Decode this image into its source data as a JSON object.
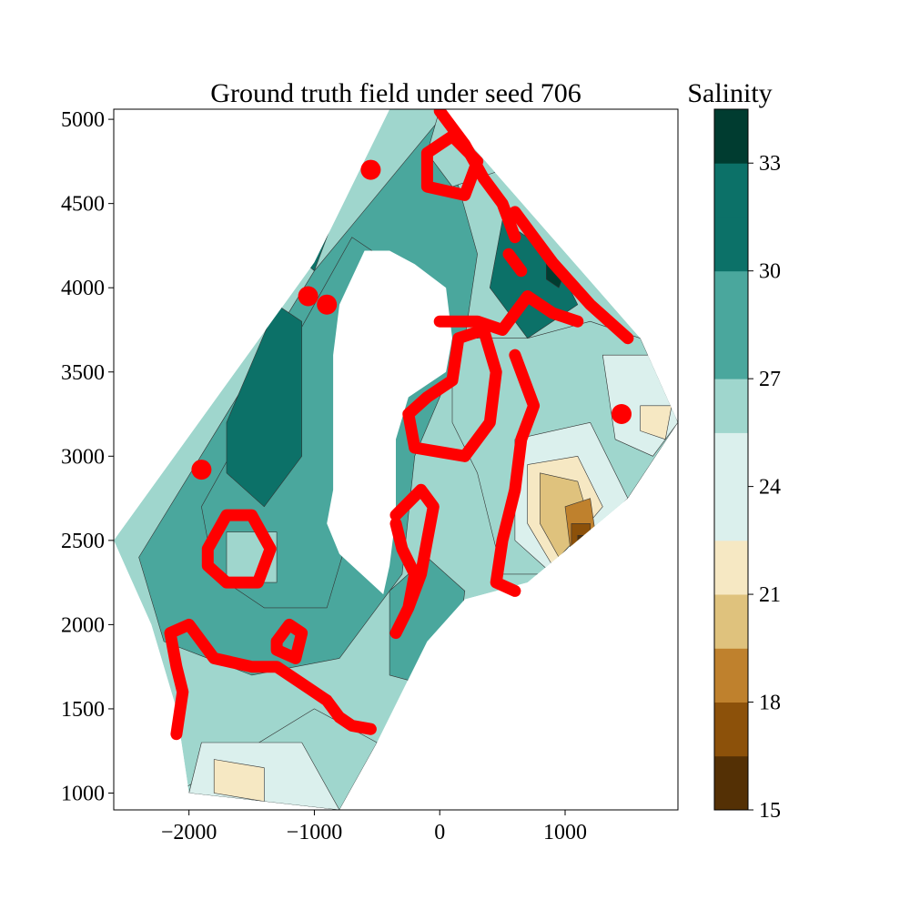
{
  "chart_data": {
    "type": "heatmap",
    "title": "Ground truth field under seed 706",
    "xlabel": "",
    "ylabel": "",
    "xlim": [
      -2600,
      1900
    ],
    "ylim": [
      900,
      5060
    ],
    "xticks": [
      -2000,
      -1000,
      0,
      1000
    ],
    "xtick_labels": [
      "−2000",
      "−1000",
      "0",
      "1000"
    ],
    "yticks": [
      1000,
      1500,
      2000,
      2500,
      3000,
      3500,
      4000,
      4500,
      5000
    ],
    "ytick_labels": [
      "1000",
      "1500",
      "2000",
      "2500",
      "3000",
      "3500",
      "4000",
      "4500",
      "5000"
    ],
    "grid": false,
    "colorbar": {
      "title": "Salinity",
      "range": [
        15,
        34.5
      ],
      "levels": [
        15,
        16.5,
        18,
        19.5,
        21,
        22.5,
        24,
        25.5,
        27,
        28.5,
        30,
        31.5,
        33,
        34.5
      ],
      "colors": [
        "#543005",
        "#8c510a",
        "#bf812d",
        "#dfc27d",
        "#f6e8c3",
        "#dbf0ed",
        "#dbf0ed",
        "#9fd6cd",
        "#4aa79d",
        "#4aa79d",
        "#0c7168",
        "#0c7168",
        "#003c30"
      ],
      "ticks": [
        15,
        18,
        21,
        24,
        27,
        30,
        33
      ],
      "tick_labels": [
        "15",
        "18",
        "21",
        "24",
        "27",
        "30",
        "33"
      ]
    },
    "domain_polygon": [
      [
        -2600,
        2500
      ],
      [
        -1000,
        4150
      ],
      [
        -400,
        5060
      ],
      [
        0,
        5060
      ],
      [
        1600,
        3700
      ],
      [
        1900,
        3200
      ],
      [
        1500,
        2750
      ],
      [
        700,
        2250
      ],
      [
        200,
        2150
      ],
      [
        -100,
        1900
      ],
      [
        -500,
        1300
      ],
      [
        -800,
        900
      ],
      [
        -2000,
        1000
      ],
      [
        -2100,
        1500
      ],
      [
        -2300,
        2000
      ]
    ],
    "hole_polygon": [
      [
        -600,
        4220
      ],
      [
        -400,
        4220
      ],
      [
        -200,
        4140
      ],
      [
        50,
        4000
      ],
      [
        100,
        3700
      ],
      [
        50,
        3500
      ],
      [
        -250,
        3350
      ],
      [
        -350,
        3100
      ],
      [
        -350,
        2650
      ],
      [
        -400,
        2350
      ],
      [
        -450,
        2180
      ],
      [
        -800,
        2420
      ],
      [
        -900,
        2600
      ],
      [
        -850,
        2800
      ],
      [
        -850,
        3600
      ],
      [
        -800,
        3900
      ]
    ],
    "regions": [
      {
        "level": 27.75,
        "polygon": [
          [
            -2400,
            2400
          ],
          [
            -1000,
            4100
          ],
          [
            0,
            5000
          ],
          [
            300,
            4200
          ],
          [
            200,
            3700
          ],
          [
            -200,
            3000
          ],
          [
            -300,
            2300
          ],
          [
            -800,
            1800
          ],
          [
            -1500,
            1700
          ],
          [
            -2200,
            1900
          ]
        ]
      },
      {
        "level": 29.25,
        "polygon": [
          [
            -1900,
            2700
          ],
          [
            -1000,
            3900
          ],
          [
            -700,
            4300
          ],
          [
            -300,
            4100
          ],
          [
            -500,
            3500
          ],
          [
            -700,
            2600
          ],
          [
            -900,
            2100
          ],
          [
            -1400,
            2100
          ],
          [
            -1800,
            2300
          ]
        ]
      },
      {
        "level": 29.25,
        "polygon": [
          [
            -400,
            1700
          ],
          [
            100,
            1600
          ],
          [
            200,
            2200
          ],
          [
            -100,
            2400
          ],
          [
            -400,
            2200
          ]
        ]
      },
      {
        "level": 30.75,
        "polygon": [
          [
            -1700,
            3200
          ],
          [
            -1300,
            3900
          ],
          [
            -1100,
            3800
          ],
          [
            -1100,
            3000
          ],
          [
            -1400,
            2700
          ],
          [
            -1700,
            2900
          ]
        ]
      },
      {
        "level": 30.75,
        "polygon": [
          [
            -1300,
            4300
          ],
          [
            -1000,
            4600
          ],
          [
            -800,
            4500
          ],
          [
            -1000,
            4100
          ]
        ]
      },
      {
        "level": 30.75,
        "polygon": [
          [
            500,
            4400
          ],
          [
            900,
            4200
          ],
          [
            1100,
            3900
          ],
          [
            700,
            3700
          ],
          [
            400,
            4000
          ]
        ]
      },
      {
        "level": 33.75,
        "polygon": [
          [
            850,
            4150
          ],
          [
            1000,
            4100
          ],
          [
            950,
            4000
          ],
          [
            850,
            4050
          ]
        ]
      },
      {
        "level": 25.5,
        "polygon": [
          [
            -1700,
            2550
          ],
          [
            -1300,
            2550
          ],
          [
            -1300,
            2250
          ],
          [
            -1700,
            2250
          ]
        ]
      },
      {
        "level": 25.5,
        "polygon": [
          [
            -2100,
            1000
          ],
          [
            -1000,
            1500
          ],
          [
            -500,
            1300
          ],
          [
            -800,
            900
          ]
        ]
      },
      {
        "level": 25.5,
        "polygon": [
          [
            0,
            5060
          ],
          [
            400,
            4900
          ],
          [
            500,
            4700
          ],
          [
            100,
            4600
          ],
          [
            -100,
            4800
          ]
        ]
      },
      {
        "level": 25.5,
        "polygon": [
          [
            100,
            3700
          ],
          [
            700,
            3700
          ],
          [
            1200,
            3800
          ],
          [
            1600,
            3700
          ],
          [
            1900,
            3200
          ],
          [
            1500,
            2750
          ],
          [
            900,
            2300
          ],
          [
            500,
            2300
          ],
          [
            300,
            2900
          ],
          [
            100,
            3200
          ]
        ]
      },
      {
        "level": 23.25,
        "polygon": [
          [
            1300,
            3600
          ],
          [
            1700,
            3600
          ],
          [
            1900,
            3200
          ],
          [
            1700,
            3000
          ],
          [
            1400,
            3100
          ]
        ]
      },
      {
        "level": 23.25,
        "polygon": [
          [
            600,
            3100
          ],
          [
            1200,
            3200
          ],
          [
            1500,
            2750
          ],
          [
            900,
            2300
          ],
          [
            600,
            2500
          ]
        ]
      },
      {
        "level": 23.25,
        "polygon": [
          [
            -1900,
            1300
          ],
          [
            -1100,
            1300
          ],
          [
            -800,
            900
          ],
          [
            -2000,
            1000
          ]
        ]
      },
      {
        "level": 21.75,
        "polygon": [
          [
            700,
            2950
          ],
          [
            1100,
            3000
          ],
          [
            1300,
            2700
          ],
          [
            900,
            2350
          ],
          [
            700,
            2600
          ]
        ]
      },
      {
        "level": 21.75,
        "polygon": [
          [
            1600,
            3300
          ],
          [
            1850,
            3300
          ],
          [
            1800,
            3100
          ],
          [
            1600,
            3150
          ]
        ]
      },
      {
        "level": 21.75,
        "polygon": [
          [
            -1800,
            1200
          ],
          [
            -1400,
            1150
          ],
          [
            -1400,
            950
          ],
          [
            -1800,
            1000
          ]
        ]
      },
      {
        "level": 20.25,
        "polygon": [
          [
            800,
            2900
          ],
          [
            1100,
            2850
          ],
          [
            1200,
            2600
          ],
          [
            950,
            2400
          ],
          [
            800,
            2600
          ]
        ]
      },
      {
        "level": 18.75,
        "polygon": [
          [
            1000,
            2700
          ],
          [
            1200,
            2750
          ],
          [
            1250,
            2500
          ],
          [
            1050,
            2400
          ]
        ]
      },
      {
        "level": 17.25,
        "polygon": [
          [
            1050,
            2600
          ],
          [
            1200,
            2600
          ],
          [
            1200,
            2450
          ],
          [
            1050,
            2450
          ]
        ]
      },
      {
        "level": 15.75,
        "polygon": [
          [
            1100,
            2530
          ],
          [
            1160,
            2530
          ],
          [
            1160,
            2470
          ],
          [
            1100,
            2470
          ]
        ]
      }
    ],
    "red_overlay": {
      "color": "#ff0000",
      "paths": [
        [
          [
            -2100,
            1350
          ],
          [
            -2050,
            1600
          ],
          [
            -2100,
            1750
          ],
          [
            -2150,
            1950
          ],
          [
            -2000,
            2000
          ],
          [
            -1800,
            1800
          ],
          [
            -1500,
            1750
          ],
          [
            -1300,
            1750
          ],
          [
            -1100,
            1650
          ],
          [
            -900,
            1550
          ],
          [
            -800,
            1450
          ],
          [
            -700,
            1400
          ],
          [
            -550,
            1380
          ]
        ],
        [
          [
            -1850,
            2450
          ],
          [
            -1700,
            2650
          ],
          [
            -1500,
            2650
          ],
          [
            -1350,
            2450
          ],
          [
            -1450,
            2250
          ],
          [
            -1700,
            2250
          ],
          [
            -1850,
            2350
          ],
          [
            -1850,
            2450
          ]
        ],
        [
          [
            -1300,
            1900
          ],
          [
            -1200,
            2000
          ],
          [
            -1100,
            1950
          ],
          [
            -1150,
            1800
          ],
          [
            -1300,
            1850
          ],
          [
            -1300,
            1900
          ]
        ],
        [
          [
            -350,
            2650
          ],
          [
            -150,
            2800
          ],
          [
            -50,
            2700
          ],
          [
            -100,
            2500
          ],
          [
            -150,
            2300
          ],
          [
            -250,
            2100
          ],
          [
            -350,
            1950
          ],
          [
            -250,
            2100
          ],
          [
            -200,
            2300
          ],
          [
            -300,
            2450
          ],
          [
            -350,
            2600
          ]
        ],
        [
          [
            -200,
            3050
          ],
          [
            200,
            3000
          ],
          [
            400,
            3200
          ],
          [
            450,
            3500
          ],
          [
            350,
            3750
          ],
          [
            150,
            3700
          ],
          [
            100,
            3450
          ],
          [
            -100,
            3350
          ],
          [
            -250,
            3250
          ],
          [
            -200,
            3050
          ]
        ],
        [
          [
            0,
            3800
          ],
          [
            300,
            3800
          ],
          [
            500,
            3750
          ],
          [
            700,
            3950
          ],
          [
            900,
            3850
          ],
          [
            1100,
            3800
          ]
        ],
        [
          [
            600,
            3600
          ],
          [
            750,
            3300
          ],
          [
            650,
            3100
          ],
          [
            600,
            2800
          ],
          [
            500,
            2500
          ],
          [
            450,
            2250
          ],
          [
            600,
            2200
          ]
        ],
        [
          [
            0,
            5050
          ],
          [
            200,
            4850
          ],
          [
            350,
            4650
          ],
          [
            500,
            4500
          ],
          [
            600,
            4300
          ]
        ],
        [
          [
            -100,
            4800
          ],
          [
            100,
            4900
          ],
          [
            300,
            4750
          ],
          [
            200,
            4550
          ],
          [
            -100,
            4600
          ],
          [
            -100,
            4800
          ]
        ],
        [
          [
            600,
            4450
          ],
          [
            900,
            4150
          ],
          [
            1200,
            3900
          ],
          [
            1500,
            3700
          ]
        ],
        [
          [
            550,
            4200
          ],
          [
            650,
            4100
          ]
        ]
      ],
      "dots": [
        [
          -1050,
          3950
        ],
        [
          -900,
          3900
        ],
        [
          1450,
          3250
        ],
        [
          -550,
          4700
        ],
        [
          -1900,
          2920
        ]
      ]
    }
  }
}
